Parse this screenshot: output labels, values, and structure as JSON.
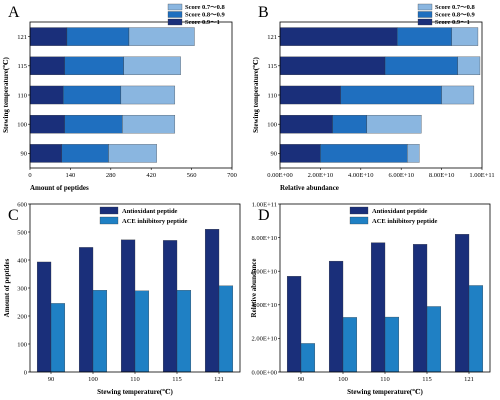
{
  "chart_data": [
    {
      "panel": "A",
      "type": "bar",
      "orientation": "horizontal",
      "stacked": true,
      "categories": [
        "90",
        "100",
        "110",
        "115",
        "121"
      ],
      "xlabel": "Amount of peptides",
      "ylabel": "Stewing temperature(℃)",
      "xlim": [
        0,
        700
      ],
      "xticks": [
        "0",
        "140",
        "280",
        "420",
        "560",
        "700"
      ],
      "legend_position": "top-right",
      "series": [
        {
          "name": "Score 0.9～1",
          "color": "#1a2f7a",
          "values": [
            110,
            120,
            115,
            120,
            128
          ]
        },
        {
          "name": "Score 0.8～0.9",
          "color": "#1f6fbf",
          "values": [
            162,
            200,
            200,
            205,
            215
          ]
        },
        {
          "name": "Score 0.7～0.8",
          "color": "#8ab6e0",
          "values": [
            167,
            182,
            187,
            197,
            227
          ]
        }
      ]
    },
    {
      "panel": "B",
      "type": "bar",
      "orientation": "horizontal",
      "stacked": true,
      "categories": [
        "90",
        "100",
        "110",
        "115",
        "121"
      ],
      "xlabel": "Relative abundance",
      "ylabel": "Stewing temperature(℃)",
      "xlim": [
        0,
        100000000000
      ],
      "xticks": [
        "0.00E+00",
        "2.00E+10",
        "4.00E+10",
        "6.00E+10",
        "8.00E+10",
        "1.00E+11"
      ],
      "legend_position": "top-right",
      "series": [
        {
          "name": "Score 0.9～1",
          "color": "#1a2f7a",
          "values": [
            20000000000,
            26000000000,
            30000000000,
            52000000000,
            58000000000
          ]
        },
        {
          "name": "Score 0.8～0.9",
          "color": "#1f6fbf",
          "values": [
            43000000000,
            17000000000,
            50000000000,
            36000000000,
            27000000000
          ]
        },
        {
          "name": "Score 0.7～0.8",
          "color": "#8ab6e0",
          "values": [
            6000000000,
            27000000000,
            16000000000,
            11000000000,
            13000000000
          ]
        }
      ]
    },
    {
      "panel": "C",
      "type": "bar",
      "categories": [
        "90",
        "100",
        "110",
        "115",
        "121"
      ],
      "xlabel": "Stewing temperature(℃)",
      "ylabel": "Amount of peptides",
      "ylim": [
        0,
        600
      ],
      "yticks": [
        "0",
        "100",
        "200",
        "300",
        "400",
        "500",
        "600"
      ],
      "legend_position": "top",
      "series": [
        {
          "name": "Antioxidant peptide",
          "color": "#1a2f7a",
          "values": [
            393,
            445,
            472,
            470,
            510
          ]
        },
        {
          "name": "ACE inhibitory peptide",
          "color": "#1f80c4",
          "values": [
            245,
            292,
            290,
            292,
            308
          ]
        }
      ]
    },
    {
      "panel": "D",
      "type": "bar",
      "categories": [
        "90",
        "100",
        "110",
        "115",
        "121"
      ],
      "xlabel": "Stewing temperature(℃)",
      "ylabel": "Relative abundance",
      "ylim": [
        0,
        100000000000
      ],
      "yticks": [
        "0.00E+00",
        "2.00E+10",
        "4.00E+10",
        "6.00E+10",
        "8.00E+10",
        "1.00E+11"
      ],
      "legend_position": "top",
      "series": [
        {
          "name": "Antioxidant peptide",
          "color": "#1a2f7a",
          "values": [
            57000000000,
            66000000000,
            77000000000,
            76000000000,
            82000000000
          ]
        },
        {
          "name": "ACE inhibitory peptide",
          "color": "#1f80c4",
          "values": [
            17000000000,
            32500000000,
            32700000000,
            39000000000,
            51500000000
          ]
        }
      ]
    }
  ]
}
